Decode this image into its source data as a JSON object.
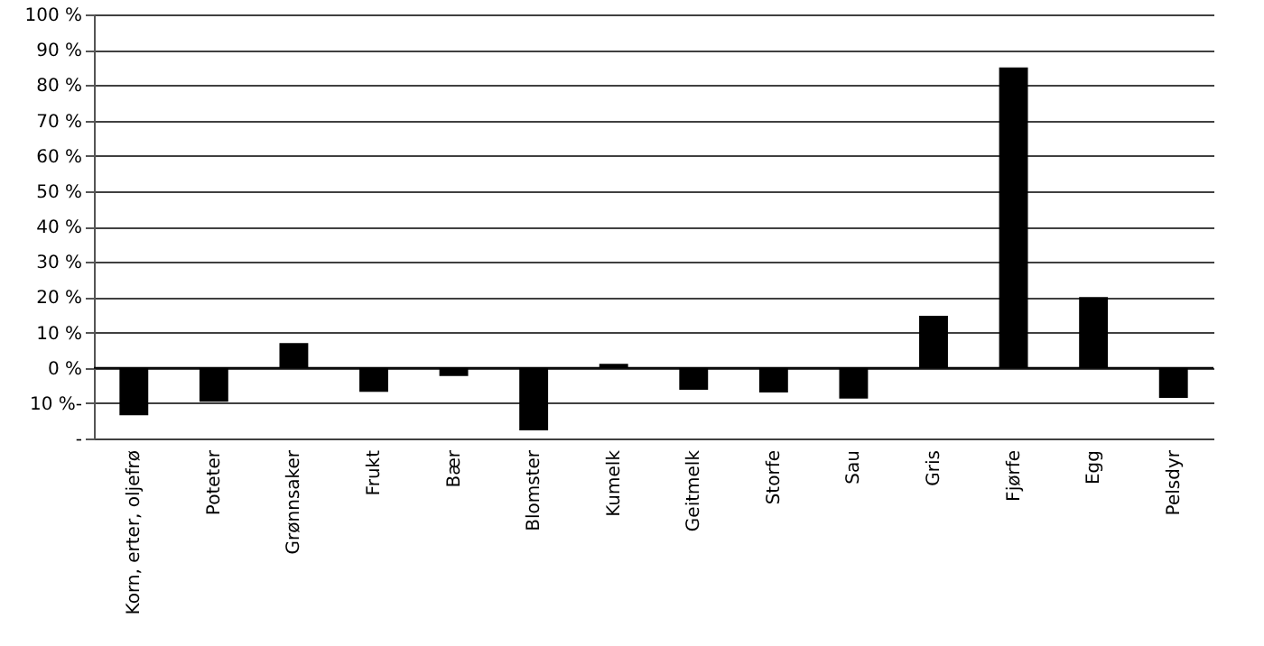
{
  "chart_data": {
    "type": "bar",
    "categories": [
      "Korn, erter, oljefrø",
      "Poteter",
      "Grønnsaker",
      "Frukt",
      "Bær",
      "Blomster",
      "Kumelk",
      "Geitmelk",
      "Storfe",
      "Sau",
      "Gris",
      "Fjørfe",
      "Egg",
      "Pelsdyr"
    ],
    "values": [
      -13.4,
      -9.6,
      7,
      -6.8,
      -2.3,
      -17.7,
      1.1,
      -6.2,
      -7,
      -8.7,
      14.7,
      85,
      20,
      -8.5
    ],
    "color": "#000000",
    "ylim": [
      -20,
      100
    ],
    "yticks": [
      {
        "value": -20,
        "label": "-"
      },
      {
        "value": -10,
        "label": "10 %-"
      },
      {
        "value": 0,
        "label": "0 %"
      },
      {
        "value": 10,
        "label": "10 %"
      },
      {
        "value": 20,
        "label": "20 %"
      },
      {
        "value": 30,
        "label": "30 %"
      },
      {
        "value": 40,
        "label": "40 %"
      },
      {
        "value": 50,
        "label": "50 %"
      },
      {
        "value": 60,
        "label": "60 %"
      },
      {
        "value": 70,
        "label": "70 %"
      },
      {
        "value": 80,
        "label": "80 %"
      },
      {
        "value": 90,
        "label": "90 %"
      },
      {
        "value": 100,
        "label": "100 %"
      }
    ],
    "grid": "y"
  }
}
